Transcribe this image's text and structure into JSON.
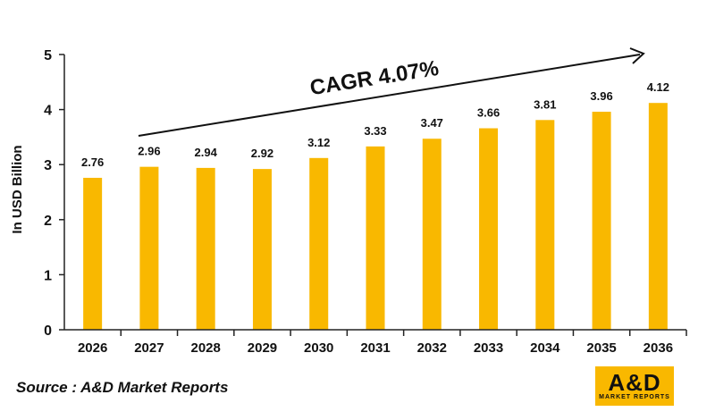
{
  "chart_data": {
    "type": "bar",
    "categories": [
      "2026",
      "2027",
      "2028",
      "2029",
      "2030",
      "2031",
      "2032",
      "2033",
      "2034",
      "2035",
      "2036"
    ],
    "values": [
      2.76,
      2.96,
      2.94,
      2.92,
      3.12,
      3.33,
      3.47,
      3.66,
      3.81,
      3.96,
      4.12
    ],
    "value_labels": [
      "2.76",
      "2.96",
      "2.94",
      "2.92",
      "3.12",
      "3.33",
      "3.47",
      "3.66",
      "3.81",
      "3.96",
      "4.12"
    ],
    "ylabel": "In USD Billion",
    "ylim": [
      0,
      5
    ],
    "yticks": [
      "0",
      "1",
      "2",
      "3",
      "4",
      "5"
    ],
    "grid": false,
    "bar_color": "#f9b800",
    "annotation": "CAGR 4.07%"
  },
  "source_text": "Source : A&D Market Reports",
  "logo": {
    "main": "A&D",
    "sub": "MARKET REPORTS",
    "color": "#f9b800"
  }
}
